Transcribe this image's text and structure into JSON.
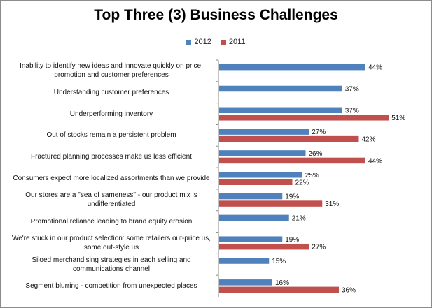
{
  "chart_data": {
    "type": "bar",
    "orientation": "horizontal",
    "title": "Top Three (3) Business Challenges",
    "legend_position": "top",
    "grid": false,
    "xlim": [
      0,
      60
    ],
    "categories": [
      "Inability to identify new ideas and innovate quickly on price, promotion and customer preferences",
      "Understanding customer preferences",
      "Underperforming inventory",
      "Out of stocks remain a persistent problem",
      "Fractured planning processes make us less efficient",
      "Consumers expect more localized assortments than we provide",
      "Our stores are a \"sea of sameness\" - our product mix is undifferentiated",
      "Promotional reliance leading to brand equity erosion",
      "We're stuck in our product selection: some retailers out-price us, some out-style us",
      "Siloed merchandising strategies in each selling and communications channel",
      "Segment blurring - competition from unexpected places"
    ],
    "series": [
      {
        "name": "2012",
        "color": "#4f81bd",
        "values": [
          44,
          37,
          37,
          27,
          26,
          25,
          19,
          21,
          19,
          15,
          16
        ]
      },
      {
        "name": "2011",
        "color": "#c0504d",
        "values": [
          null,
          null,
          51,
          42,
          44,
          22,
          31,
          null,
          27,
          null,
          36
        ]
      }
    ],
    "value_suffix": "%"
  }
}
